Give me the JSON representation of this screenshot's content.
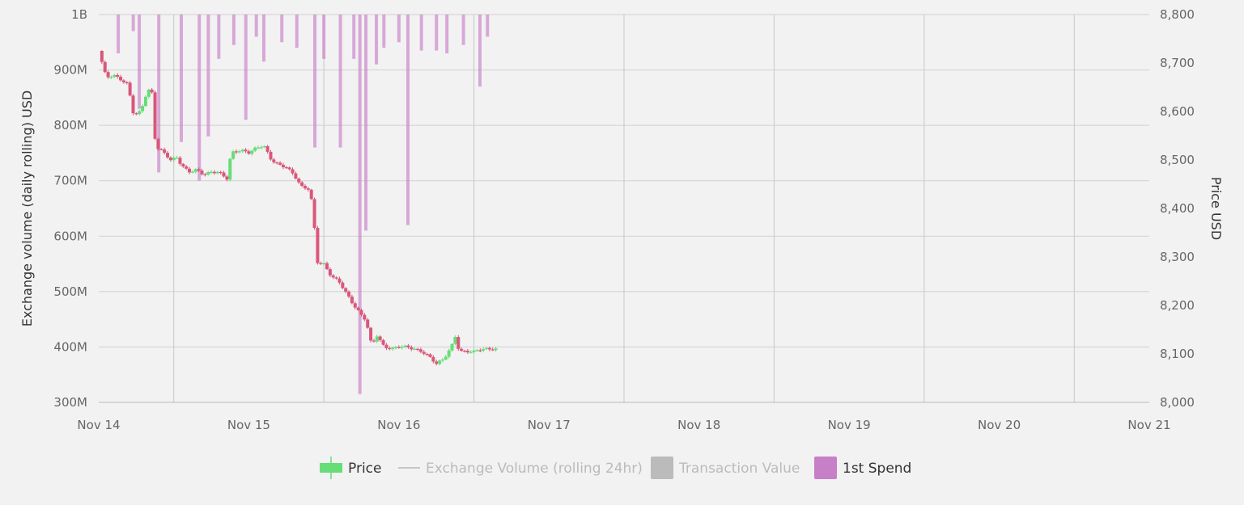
{
  "chart_data": {
    "type": "candlestick+bar",
    "left_axis": {
      "label": "Exchange volume (daily rolling) USD",
      "range": [
        300000000,
        1000000000
      ],
      "ticks": [
        "300M",
        "400M",
        "500M",
        "600M",
        "700M",
        "800M",
        "900M",
        "1B"
      ]
    },
    "right_axis": {
      "label": "Price USD",
      "range": [
        8000,
        8800
      ],
      "ticks": [
        "8,000",
        "8,100",
        "8,200",
        "8,300",
        "8,400",
        "8,500",
        "8,600",
        "8,700",
        "8,800"
      ]
    },
    "x_axis": {
      "ticks": [
        "Nov 14",
        "Nov 15",
        "Nov 16",
        "Nov 17",
        "Nov 18",
        "Nov 19",
        "Nov 20",
        "Nov 21"
      ]
    },
    "grid": true,
    "legend": {
      "placement": "bottom",
      "items": [
        {
          "label": "Price",
          "color": "#66dd77",
          "enabled": true
        },
        {
          "label": "Exchange Volume (rolling 24hr)",
          "color": "#999999",
          "enabled": false
        },
        {
          "label": "Transaction Value",
          "color": "#bbbbbb",
          "enabled": false
        },
        {
          "label": "1st Spend",
          "color": "#c780c7",
          "enabled": true
        }
      ]
    },
    "price_anchors": [
      [
        0.0,
        8725
      ],
      [
        0.05,
        8670
      ],
      [
        0.1,
        8675
      ],
      [
        0.15,
        8665
      ],
      [
        0.2,
        8655
      ],
      [
        0.22,
        8600
      ],
      [
        0.25,
        8595
      ],
      [
        0.28,
        8600
      ],
      [
        0.32,
        8640
      ],
      [
        0.35,
        8650
      ],
      [
        0.36,
        8620
      ],
      [
        0.38,
        8520
      ],
      [
        0.4,
        8525
      ],
      [
        0.45,
        8510
      ],
      [
        0.48,
        8500
      ],
      [
        0.52,
        8505
      ],
      [
        0.55,
        8490
      ],
      [
        0.6,
        8475
      ],
      [
        0.65,
        8480
      ],
      [
        0.7,
        8470
      ],
      [
        0.75,
        8475
      ],
      [
        0.8,
        8475
      ],
      [
        0.86,
        8460
      ],
      [
        0.88,
        8515
      ],
      [
        0.95,
        8520
      ],
      [
        1.0,
        8515
      ],
      [
        1.05,
        8525
      ],
      [
        1.1,
        8530
      ],
      [
        1.15,
        8500
      ],
      [
        1.2,
        8490
      ],
      [
        1.25,
        8485
      ],
      [
        1.3,
        8470
      ],
      [
        1.35,
        8445
      ],
      [
        1.4,
        8440
      ],
      [
        1.43,
        8400
      ],
      [
        1.45,
        8290
      ],
      [
        1.5,
        8285
      ],
      [
        1.55,
        8260
      ],
      [
        1.6,
        8250
      ],
      [
        1.65,
        8225
      ],
      [
        1.7,
        8200
      ],
      [
        1.75,
        8180
      ],
      [
        1.78,
        8170
      ],
      [
        1.82,
        8115
      ],
      [
        1.85,
        8140
      ],
      [
        1.9,
        8115
      ],
      [
        1.95,
        8110
      ],
      [
        2.0,
        8115
      ],
      [
        2.05,
        8115
      ],
      [
        2.1,
        8110
      ],
      [
        2.15,
        8105
      ],
      [
        2.2,
        8095
      ],
      [
        2.25,
        8080
      ],
      [
        2.3,
        8090
      ],
      [
        2.35,
        8115
      ],
      [
        2.38,
        8140
      ],
      [
        2.4,
        8105
      ],
      [
        2.45,
        8105
      ],
      [
        2.5,
        8105
      ],
      [
        2.55,
        8110
      ],
      [
        2.6,
        8110
      ],
      [
        2.65,
        8110
      ]
    ],
    "first_spend_bars": [
      [
        0.13,
        930000000
      ],
      [
        0.23,
        970000000
      ],
      [
        0.27,
        830000000
      ],
      [
        0.4,
        715000000
      ],
      [
        0.55,
        770000000
      ],
      [
        0.67,
        700000000
      ],
      [
        0.73,
        780000000
      ],
      [
        0.8,
        920000000
      ],
      [
        0.9,
        945000000
      ],
      [
        0.98,
        810000000
      ],
      [
        1.05,
        960000000
      ],
      [
        1.1,
        915000000
      ],
      [
        1.22,
        950000000
      ],
      [
        1.32,
        940000000
      ],
      [
        1.44,
        760000000
      ],
      [
        1.5,
        920000000
      ],
      [
        1.61,
        760000000
      ],
      [
        1.7,
        920000000
      ],
      [
        1.74,
        315000000
      ],
      [
        1.78,
        610000000
      ],
      [
        1.85,
        910000000
      ],
      [
        1.9,
        940000000
      ],
      [
        2.0,
        950000000
      ],
      [
        2.06,
        620000000
      ],
      [
        2.15,
        935000000
      ],
      [
        2.25,
        935000000
      ],
      [
        2.32,
        930000000
      ],
      [
        2.43,
        945000000
      ],
      [
        2.54,
        870000000
      ],
      [
        2.59,
        960000000
      ]
    ]
  }
}
